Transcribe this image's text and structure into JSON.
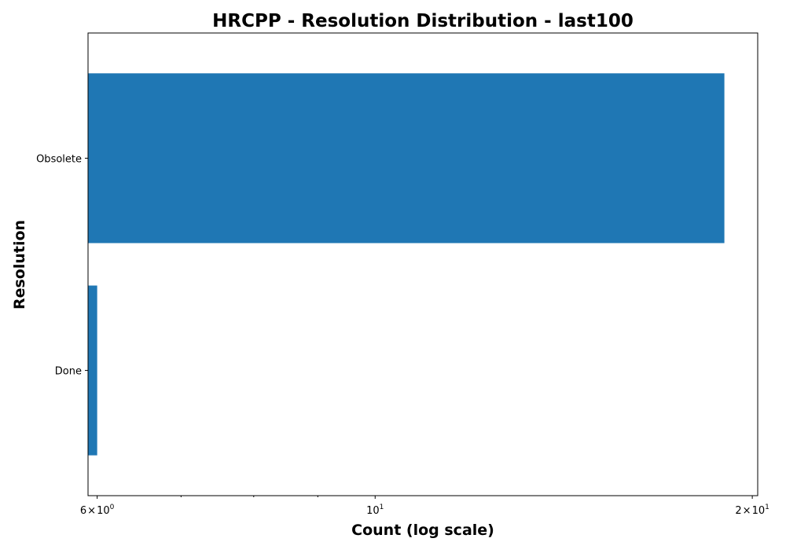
{
  "chart_data": {
    "type": "bar",
    "orientation": "horizontal",
    "title": "HRCPP - Resolution Distribution - last100",
    "xlabel": "Count (log scale)",
    "ylabel": "Resolution",
    "xscale": "log",
    "xlim": [
      5.9,
      20.2
    ],
    "categories": [
      "Done",
      "Obsolete"
    ],
    "values": [
      6,
      19
    ],
    "bar_color": "#1f77b4",
    "grid": false,
    "legend": "none",
    "x_ticks": [
      {
        "value": 6,
        "base": "6",
        "exp": "0"
      },
      {
        "value": 10,
        "base": "10",
        "exp": "1"
      },
      {
        "value": 20,
        "base": "2",
        "exp": "1"
      }
    ],
    "x_minor_ticks": [
      7,
      8,
      9
    ]
  }
}
